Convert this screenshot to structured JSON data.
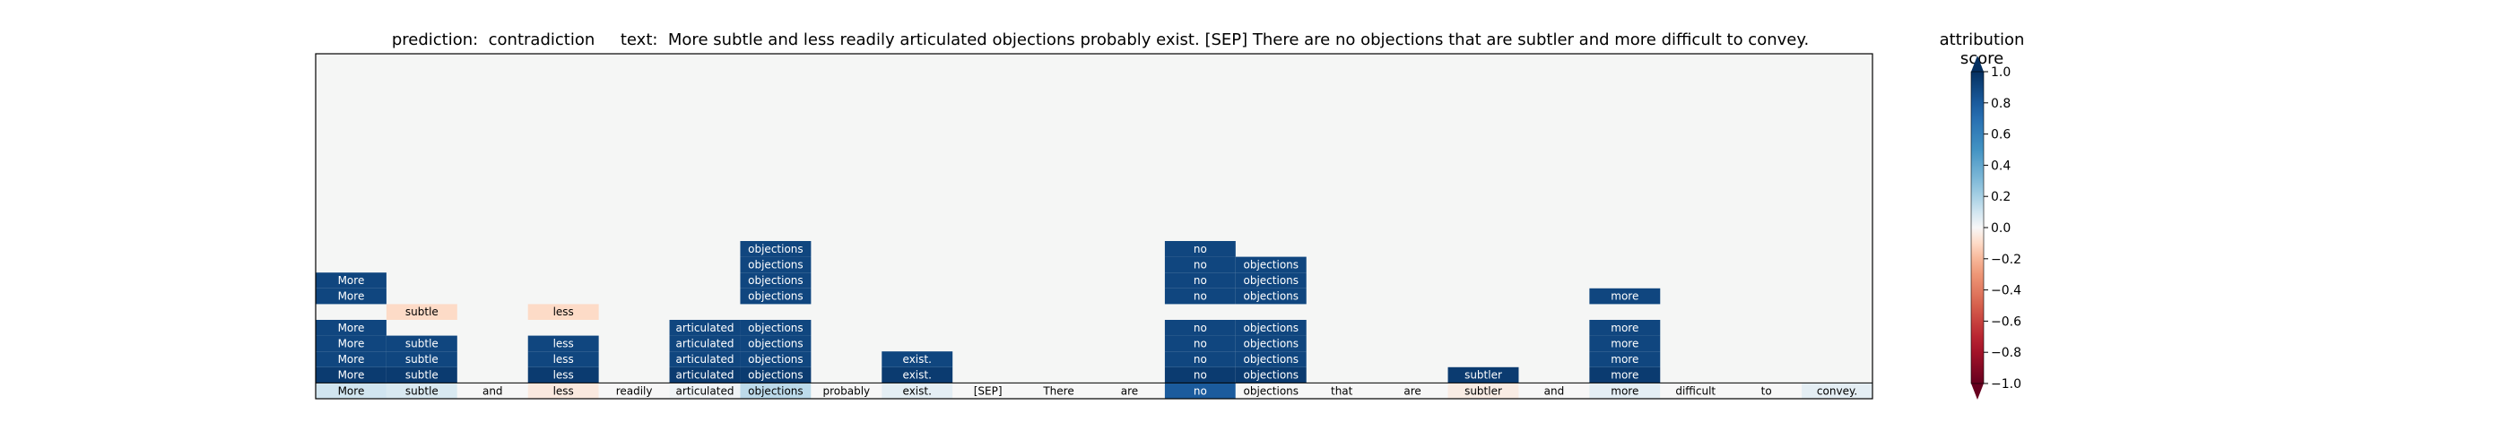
{
  "chart_data": {
    "type": "heatmap",
    "title": "prediction:  contradiction     text:  More subtle and less readily articulated objections probably exist. [SEP] There are no objections that are subtler and more difficult to convey.",
    "colorbar_label": "attribution score",
    "colorbar_ticks": [
      "1.0",
      "0.8",
      "0.6",
      "0.4",
      "0.2",
      "0.0",
      "−0.2",
      "−0.4",
      "−0.6",
      "−0.8",
      "−1.0"
    ],
    "colorbar_range": [
      -1.0,
      1.0
    ],
    "colormap": "RdBu",
    "tokens": [
      "More",
      "subtle",
      "and",
      "less",
      "readily",
      "articulated",
      "objections",
      "probably",
      "exist.",
      "[SEP]",
      "There",
      "are",
      "no",
      "objections",
      "that",
      "are",
      "subtler",
      "and",
      "more",
      "difficult",
      "to",
      "convey."
    ],
    "base_row_scores": [
      0.1,
      0.08,
      0,
      -0.05,
      0,
      0.02,
      0.15,
      0,
      0.05,
      0,
      0,
      0,
      0.8,
      0,
      0,
      0,
      -0.04,
      0,
      0.05,
      0,
      0,
      0.05
    ],
    "cells": [
      {
        "row": 1,
        "col": 0,
        "score": 0.95
      },
      {
        "row": 1,
        "col": 1,
        "score": 0.95
      },
      {
        "row": 1,
        "col": 3,
        "score": 0.95
      },
      {
        "row": 1,
        "col": 5,
        "score": 0.95
      },
      {
        "row": 1,
        "col": 6,
        "score": 0.95
      },
      {
        "row": 1,
        "col": 8,
        "score": 0.95
      },
      {
        "row": 1,
        "col": 12,
        "score": 0.95
      },
      {
        "row": 1,
        "col": 13,
        "score": 0.95
      },
      {
        "row": 1,
        "col": 16,
        "score": 0.95
      },
      {
        "row": 1,
        "col": 18,
        "score": 0.95
      },
      {
        "row": 2,
        "col": 0,
        "score": 0.9
      },
      {
        "row": 2,
        "col": 1,
        "score": 0.9
      },
      {
        "row": 2,
        "col": 3,
        "score": 0.9
      },
      {
        "row": 2,
        "col": 5,
        "score": 0.9
      },
      {
        "row": 2,
        "col": 6,
        "score": 0.9
      },
      {
        "row": 2,
        "col": 8,
        "score": 0.9
      },
      {
        "row": 2,
        "col": 12,
        "score": 0.9
      },
      {
        "row": 2,
        "col": 13,
        "score": 0.9
      },
      {
        "row": 2,
        "col": 18,
        "score": 0.9
      },
      {
        "row": 3,
        "col": 0,
        "score": 0.9
      },
      {
        "row": 3,
        "col": 1,
        "score": 0.9
      },
      {
        "row": 3,
        "col": 3,
        "score": 0.9
      },
      {
        "row": 3,
        "col": 5,
        "score": 0.9
      },
      {
        "row": 3,
        "col": 6,
        "score": 0.9
      },
      {
        "row": 3,
        "col": 12,
        "score": 0.9
      },
      {
        "row": 3,
        "col": 13,
        "score": 0.9
      },
      {
        "row": 3,
        "col": 18,
        "score": 0.9
      },
      {
        "row": 4,
        "col": 0,
        "score": 0.9
      },
      {
        "row": 4,
        "col": 5,
        "score": 0.9
      },
      {
        "row": 4,
        "col": 6,
        "score": 0.9
      },
      {
        "row": 4,
        "col": 12,
        "score": 0.9
      },
      {
        "row": 4,
        "col": 13,
        "score": 0.9
      },
      {
        "row": 4,
        "col": 18,
        "score": 0.9
      },
      {
        "row": 5,
        "col": 1,
        "score": -0.1
      },
      {
        "row": 5,
        "col": 3,
        "score": -0.1
      },
      {
        "row": 6,
        "col": 0,
        "score": 0.9
      },
      {
        "row": 6,
        "col": 6,
        "score": 0.9
      },
      {
        "row": 6,
        "col": 12,
        "score": 0.9
      },
      {
        "row": 6,
        "col": 13,
        "score": 0.9
      },
      {
        "row": 6,
        "col": 18,
        "score": 0.9
      },
      {
        "row": 7,
        "col": 0,
        "score": 0.9
      },
      {
        "row": 7,
        "col": 6,
        "score": 0.9
      },
      {
        "row": 7,
        "col": 12,
        "score": 0.9
      },
      {
        "row": 7,
        "col": 13,
        "score": 0.9
      },
      {
        "row": 8,
        "col": 6,
        "score": 0.9
      },
      {
        "row": 8,
        "col": 12,
        "score": 0.9
      },
      {
        "row": 8,
        "col": 13,
        "score": 0.9
      },
      {
        "row": 9,
        "col": 6,
        "score": 0.9
      },
      {
        "row": 9,
        "col": 12,
        "score": 0.9
      }
    ],
    "cell_labels": {
      "1": {
        "0": "More",
        "1": "subtle",
        "3": "less",
        "5": "articulated",
        "6": "objections",
        "8": "exist.",
        "12": "no",
        "13": "objections",
        "16": "subtler",
        "18": "more"
      },
      "2": {
        "0": "More",
        "1": "subtle",
        "3": "less",
        "5": "articulated",
        "6": "objections",
        "8": "exist.",
        "12": "no",
        "13": "objections",
        "18": "more"
      },
      "3": {
        "0": "More",
        "1": "subtle",
        "3": "less",
        "5": "articulated",
        "6": "objections",
        "12": "no",
        "13": "objections",
        "18": "more"
      },
      "4": {
        "0": "More",
        "5": "articulated",
        "6": "objections",
        "12": "no",
        "13": "objections",
        "18": "more"
      },
      "5": {
        "1": "subtle",
        "3": "less"
      },
      "6": {
        "0": "More",
        "6": "objections",
        "12": "no",
        "13": "objections",
        "18": "more"
      },
      "7": {
        "0": "More",
        "6": "objections",
        "12": "no",
        "13": "objections"
      },
      "8": {
        "6": "objections",
        "12": "no",
        "13": "objections"
      },
      "9": {
        "6": "objections",
        "12": "no"
      }
    },
    "grid": false,
    "legend": "colorbar-right"
  }
}
